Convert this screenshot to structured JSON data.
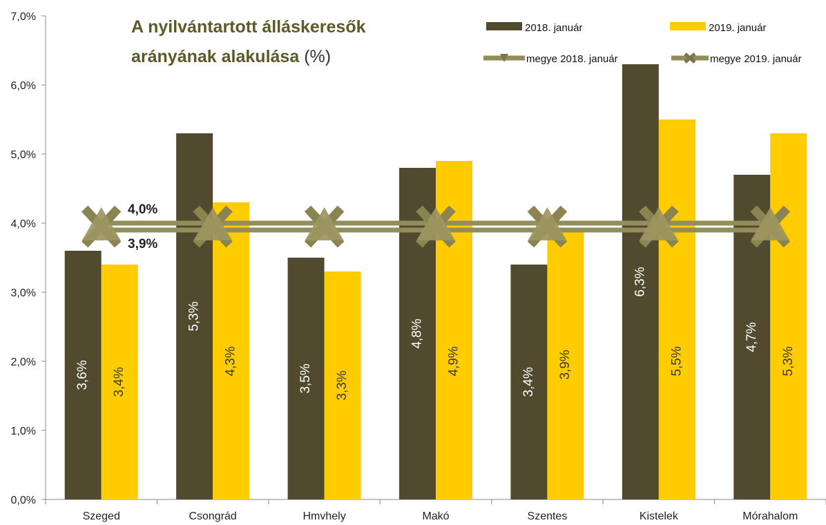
{
  "colors": {
    "bar2018": "#524a2f",
    "bar2019": "#ffcc00",
    "line": "#938c5b",
    "title": "#5c5a28",
    "label2018": "#ffffff",
    "label2019": "#3a3a3a"
  },
  "chart_data": {
    "type": "bar",
    "title_line1": "A nyilvántartott álláskeresők",
    "title_line2_bold": "arányának alakulása",
    "title_line2_unit": "(%)",
    "categories": [
      "Szeged",
      "Csongrád",
      "Hmvhely",
      "Makó",
      "Szentes",
      "Kistelek",
      "Mórahalom"
    ],
    "series": [
      {
        "name": "2018. január",
        "values": [
          3.6,
          5.3,
          3.5,
          4.8,
          3.4,
          6.3,
          4.7
        ],
        "labels": [
          "3,6%",
          "5,3%",
          "3,5%",
          "4,8%",
          "3,4%",
          "6,3%",
          "4,7%"
        ]
      },
      {
        "name": "2019. január",
        "values": [
          3.4,
          4.3,
          3.3,
          4.9,
          3.9,
          5.5,
          5.3
        ],
        "labels": [
          "3,4%",
          "4,3%",
          "3,3%",
          "4,9%",
          "3,9%",
          "5,5%",
          "5,3%"
        ]
      }
    ],
    "reference_lines": [
      {
        "name": "megye 2018. január",
        "value": 4.0,
        "label": "4,0%",
        "marker": "triangle"
      },
      {
        "name": "megye 2019. január",
        "value": 3.9,
        "label": "3,9%",
        "marker": "x"
      }
    ],
    "ylim": [
      0,
      7
    ],
    "yticks": [
      0,
      1,
      2,
      3,
      4,
      5,
      6,
      7
    ],
    "ytick_labels": [
      "0,0%",
      "1,0%",
      "2,0%",
      "3,0%",
      "4,0%",
      "5,0%",
      "6,0%",
      "7,0%"
    ],
    "grid": false,
    "legend_position": "top-right"
  }
}
